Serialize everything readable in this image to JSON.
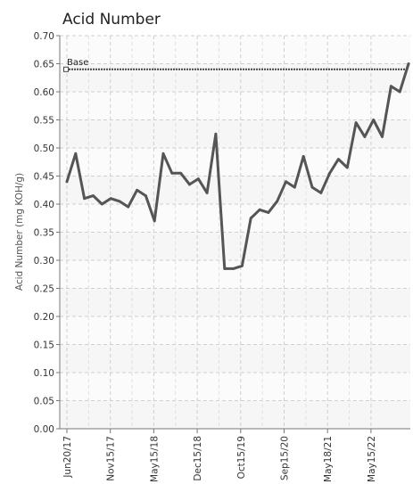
{
  "chart_data": {
    "type": "line",
    "title": "Acid Number",
    "xlabel": "",
    "ylabel": "Acid Number (mg KOH/g)",
    "ylim": [
      0,
      0.7
    ],
    "yticks": [
      "0.00",
      "0.05",
      "0.10",
      "0.15",
      "0.20",
      "0.25",
      "0.30",
      "0.35",
      "0.40",
      "0.45",
      "0.50",
      "0.55",
      "0.60",
      "0.65",
      "0.70"
    ],
    "xticks": [
      "Jun20/17",
      "Nov15/17",
      "May15/18",
      "Dec15/18",
      "Oct15/19",
      "Sep15/20",
      "May18/21",
      "May15/22"
    ],
    "grid": true,
    "legend": "none",
    "baseline": {
      "label": "Base",
      "value": 0.64
    },
    "series": [
      {
        "values": [
          0.44,
          0.49,
          0.41,
          0.415,
          0.4,
          0.41,
          0.405,
          0.395,
          0.425,
          0.415,
          0.37,
          0.49,
          0.455,
          0.455,
          0.435,
          0.445,
          0.42,
          0.525,
          0.285,
          0.285,
          0.29,
          0.375,
          0.39,
          0.385,
          0.405,
          0.44,
          0.43,
          0.485,
          0.43,
          0.42,
          0.455,
          0.48,
          0.465,
          0.545,
          0.52,
          0.55,
          0.52,
          0.61,
          0.6,
          0.65
        ]
      }
    ]
  }
}
